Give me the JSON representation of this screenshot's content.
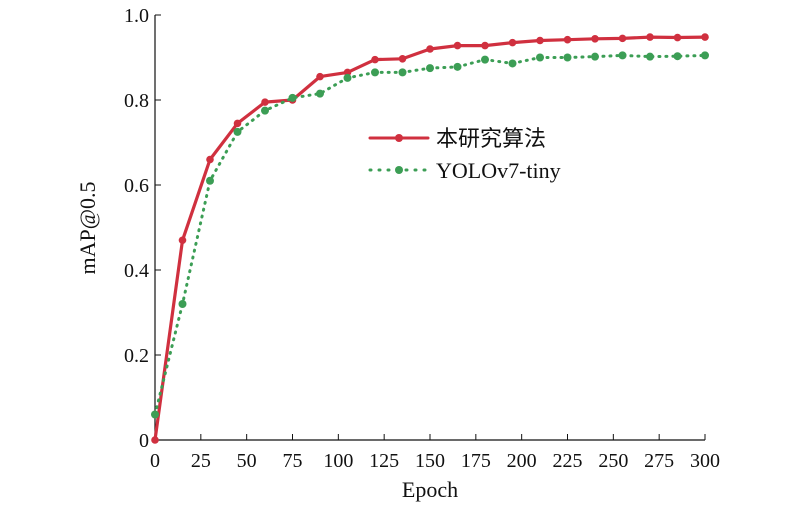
{
  "chart_data": {
    "type": "line",
    "xlabel": "Epoch",
    "ylabel": "mAP@0.5",
    "xlim": [
      0,
      300
    ],
    "ylim": [
      0,
      1.0
    ],
    "x_ticks": [
      0,
      25,
      50,
      75,
      100,
      125,
      150,
      175,
      200,
      225,
      250,
      275,
      300
    ],
    "y_ticks": [
      "0",
      "0.2",
      "0.4",
      "0.6",
      "0.8",
      "1.0"
    ],
    "grid": false,
    "legend_position": "upper-center",
    "series": [
      {
        "name": "本研究算法",
        "color": "#d0303f",
        "style": "solid-marker",
        "points": [
          [
            0,
            0.0
          ],
          [
            15,
            0.47
          ],
          [
            30,
            0.66
          ],
          [
            45,
            0.745
          ],
          [
            60,
            0.795
          ],
          [
            75,
            0.8
          ],
          [
            90,
            0.855
          ],
          [
            105,
            0.865
          ],
          [
            120,
            0.895
          ],
          [
            135,
            0.897
          ],
          [
            150,
            0.92
          ],
          [
            165,
            0.928
          ],
          [
            180,
            0.928
          ],
          [
            195,
            0.935
          ],
          [
            210,
            0.94
          ],
          [
            225,
            0.942
          ],
          [
            240,
            0.944
          ],
          [
            255,
            0.945
          ],
          [
            270,
            0.948
          ],
          [
            285,
            0.947
          ],
          [
            300,
            0.948
          ]
        ]
      },
      {
        "name": "YOLOv7-tiny",
        "color": "#3c9e55",
        "style": "dotted-marker",
        "points": [
          [
            0,
            0.06
          ],
          [
            15,
            0.32
          ],
          [
            30,
            0.61
          ],
          [
            45,
            0.725
          ],
          [
            60,
            0.775
          ],
          [
            75,
            0.805
          ],
          [
            90,
            0.815
          ],
          [
            105,
            0.852
          ],
          [
            120,
            0.865
          ],
          [
            135,
            0.865
          ],
          [
            150,
            0.875
          ],
          [
            165,
            0.878
          ],
          [
            180,
            0.895
          ],
          [
            195,
            0.886
          ],
          [
            210,
            0.9
          ],
          [
            225,
            0.9
          ],
          [
            240,
            0.902
          ],
          [
            255,
            0.905
          ],
          [
            270,
            0.902
          ],
          [
            285,
            0.903
          ],
          [
            300,
            0.905
          ]
        ]
      }
    ]
  }
}
